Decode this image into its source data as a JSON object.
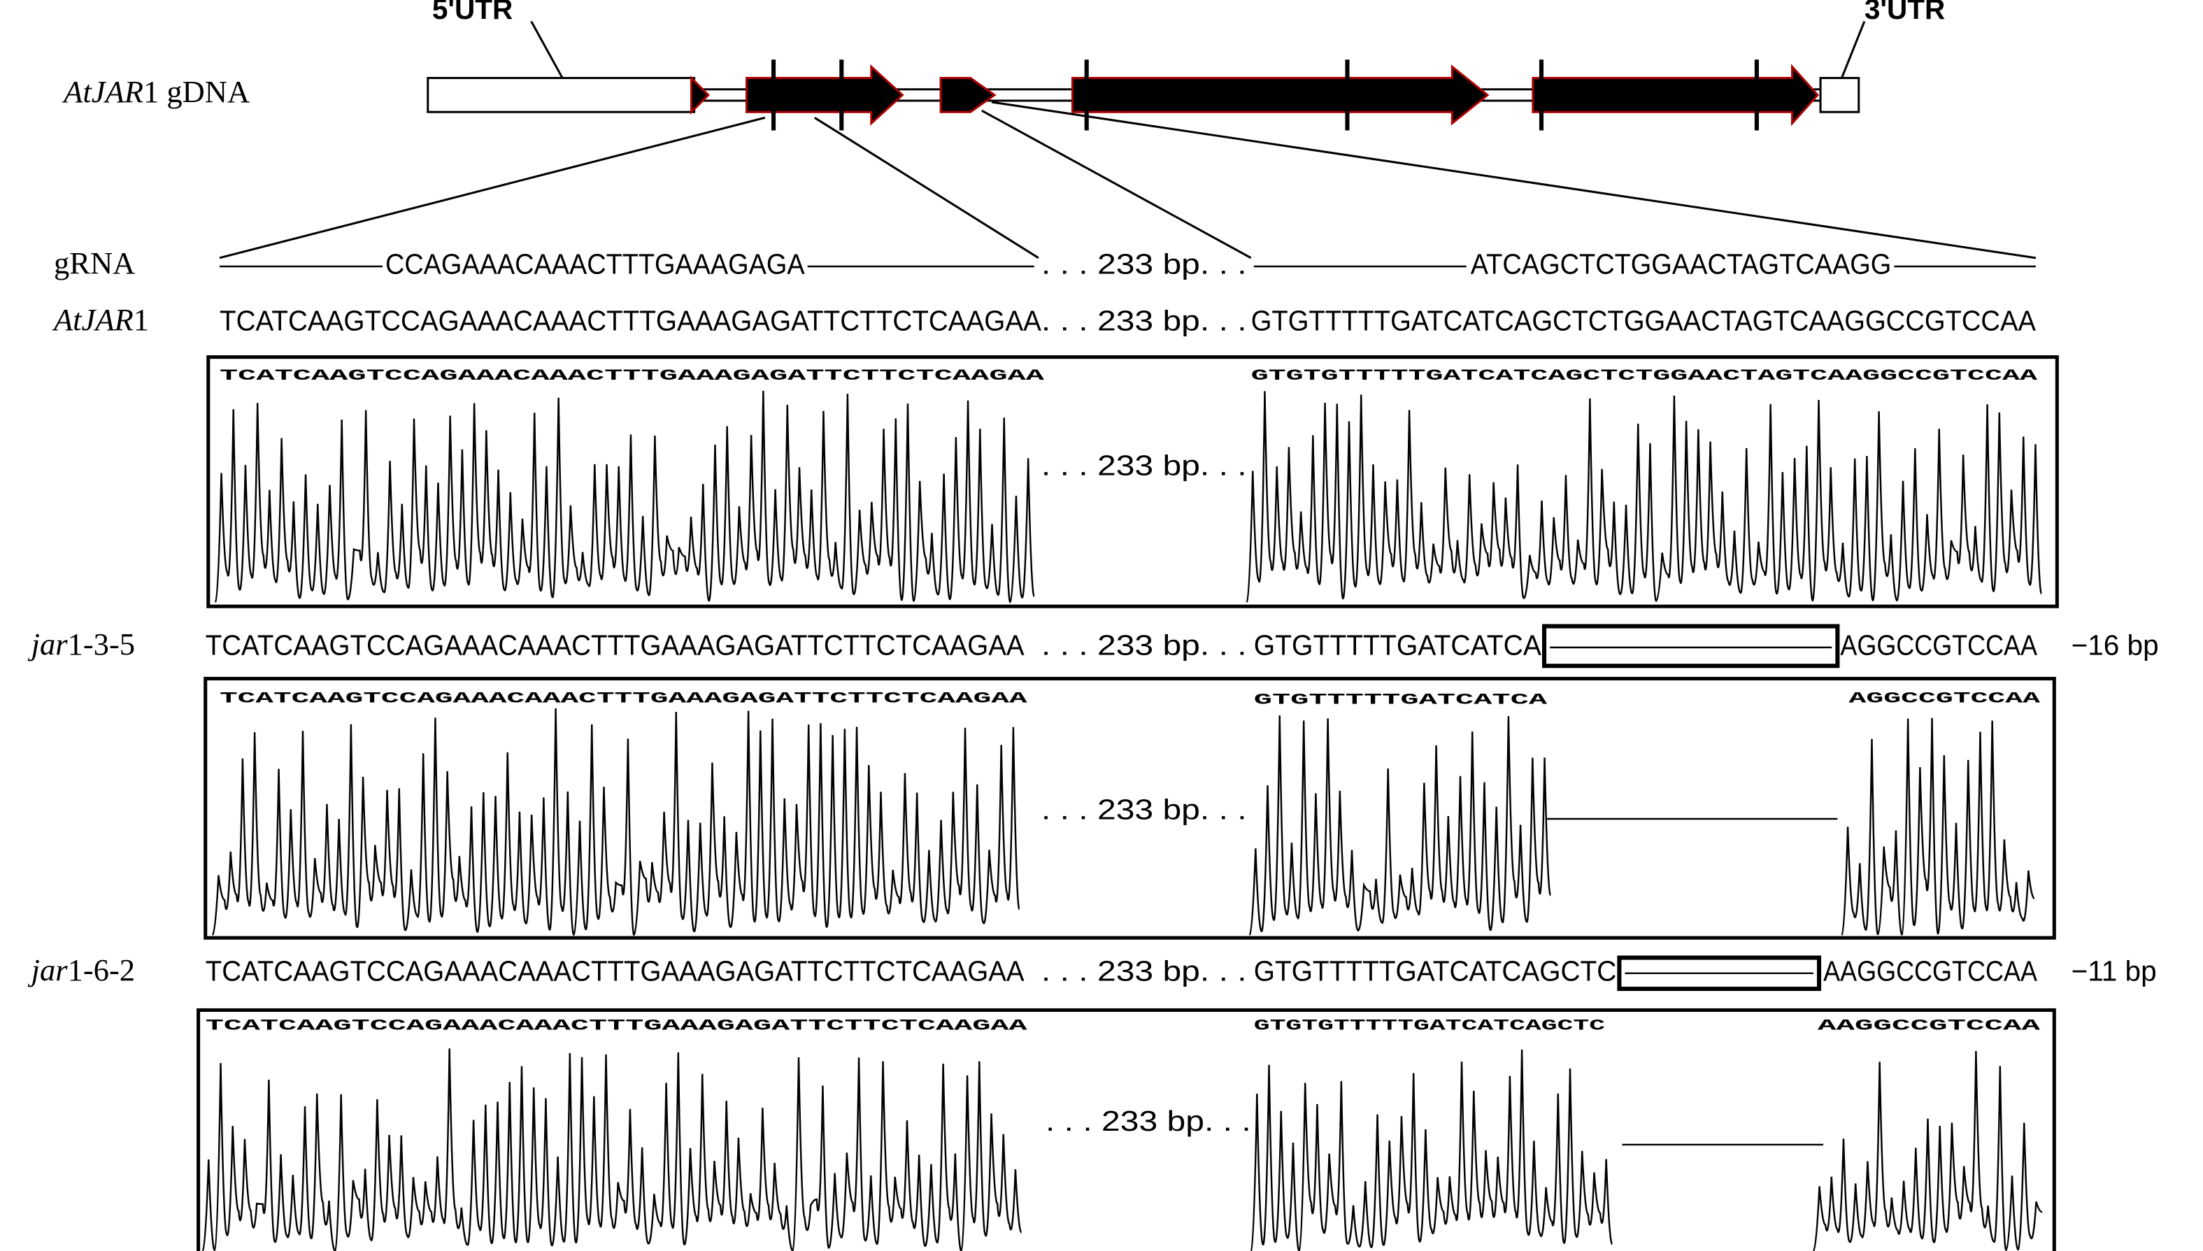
{
  "gene": {
    "label": {
      "italic": "AtJAR",
      "rest": "1 gDNA"
    },
    "utr5": "5'UTR",
    "utr3": "3'UTR"
  },
  "grna": {
    "label": "gRNA",
    "left": "CCAGAAACAAACTTTGAAAGAGA",
    "gap": ". . . 233 bp. . .",
    "right": "ATCAGCTCTGGAACTAGTCAAGG"
  },
  "wild_type": {
    "label": {
      "italic": "AtJAR",
      "rest": "1"
    },
    "left": "TCATCAAGTCCAGAAACAAACTTTGAAAGAGATTCTTCTCAAGAA",
    "gap": ". . . 233 bp. . .",
    "right": "GTGTTTTTGATCATCAGCTCTGGAACTAGTCAAGGCCGTCCAA"
  },
  "traces": [
    {
      "left": "TCATCAAGTCCAGAAACAAACTTTGAAAGAGATTCTTCTCAAGAA",
      "gap": ". . . 233 bp. . .",
      "right_a": "GTGTGTTTTTGATCATCAGCTCTGGAACTAGTCAAGGCCGTCCAA"
    },
    {
      "left": "TCATCAAGTCCAGAAACAAACTTTGAAAGAGATTCTTCTCAAGAA",
      "gap": ". . . 233 bp. . .",
      "right_a": "GTGTTTTTGATCATCA",
      "right_b": "AGGCCGTCCAA"
    },
    {
      "left": "TCATCAAGTCCAGAAACAAACTTTGAAAGAGATTCTTCTCAAGAA",
      "gap": ". . . 233 bp. . .",
      "right_a": "GTGTGTTTTTGATCATCAGCTC",
      "right_b": "AAGGCCGTCCAA"
    }
  ],
  "mutants": [
    {
      "label": {
        "italic": "jar",
        "rest": "1-3-5"
      },
      "left": "TCATCAAGTCCAGAAACAAACTTTGAAAGAGATTCTTCTCAAGAA",
      "gap": ". . . 233 bp. . .",
      "right_a": "GTGTTTTTGATCATCA",
      "right_b": "AGGCCGTCCAA",
      "deletion": "−16 bp"
    },
    {
      "label": {
        "italic": "jar",
        "rest": "1-6-2"
      },
      "left": "TCATCAAGTCCAGAAACAAACTTTGAAAGAGATTCTTCTCAAGAA",
      "gap": ". . . 233 bp. . .",
      "right_a": "GTGTTTTTGATCATCAGCTC",
      "right_b": "AAGGCCGTCCAA",
      "deletion": "−11 bp"
    }
  ]
}
